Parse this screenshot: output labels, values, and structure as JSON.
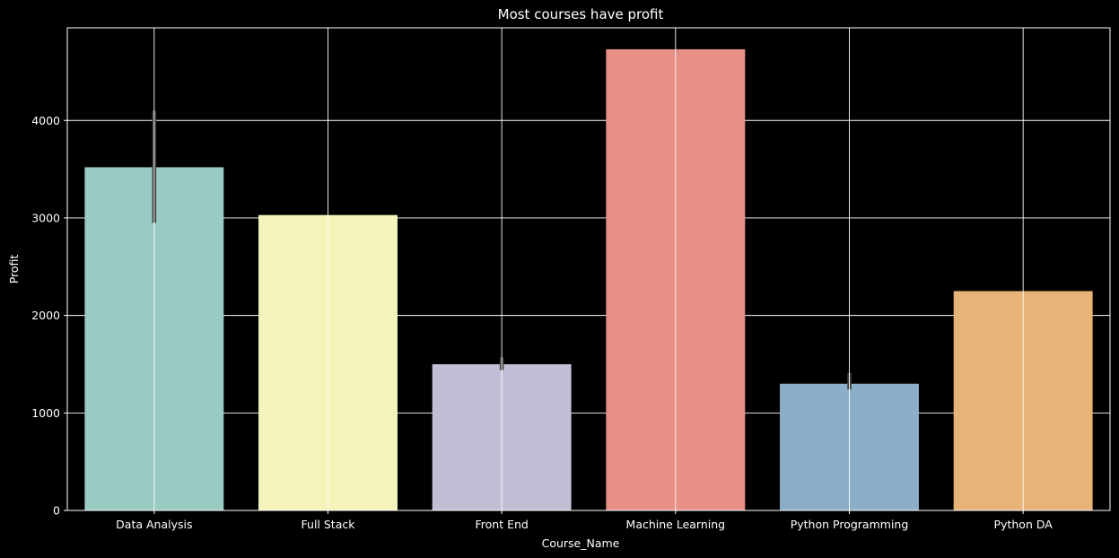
{
  "chart_data": {
    "type": "bar",
    "title": "Most courses have profit",
    "xlabel": "Course_Name",
    "ylabel": "Profit",
    "categories": [
      "Data Analysis",
      "Full Stack",
      "Front End",
      "Machine Learning",
      "Python Programming",
      "Python DA"
    ],
    "values": [
      3520,
      3030,
      1500,
      4730,
      1300,
      2250
    ],
    "error_bars": [
      [
        2950,
        4100
      ],
      null,
      [
        1440,
        1570
      ],
      null,
      [
        1240,
        1410
      ],
      null
    ],
    "colors": [
      "#99CBC2",
      "#F5F5BB",
      "#C1BFD6",
      "#E88F86",
      "#8BAFC9",
      "#E8B376"
    ],
    "ylim": [
      0,
      4950
    ],
    "yticks": [
      0,
      1000,
      2000,
      3000,
      4000
    ],
    "grid": true,
    "legend": "none"
  },
  "theme": {
    "background": "#000000",
    "foreground": "#ffffff",
    "grid_color": "#ffffff",
    "error_bar_color": "#3f3f3f"
  }
}
